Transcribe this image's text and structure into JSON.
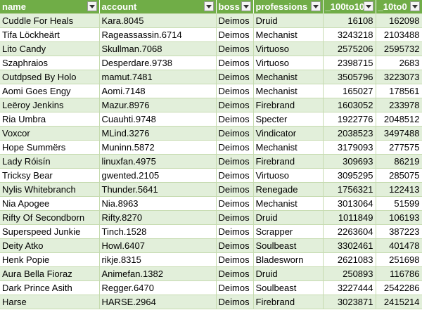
{
  "columns": [
    "name",
    "account",
    "boss",
    "professions",
    "_100to10",
    "_10to0"
  ],
  "rows": [
    [
      "Cuddle For Heals",
      "Kara.8045",
      "Deimos",
      "Druid",
      "16108",
      "162098"
    ],
    [
      "Tifa Löckheärt",
      "Rageassassin.6714",
      "Deimos",
      "Mechanist",
      "3243218",
      "2103488"
    ],
    [
      "Lito Candy",
      "Skullman.7068",
      "Deimos",
      "Virtuoso",
      "2575206",
      "2595732"
    ],
    [
      "Szaphraios",
      "Desperdare.9738",
      "Deimos",
      "Virtuoso",
      "2398715",
      "2683"
    ],
    [
      "Outdpsed By Holo",
      "mamut.7481",
      "Deimos",
      "Mechanist",
      "3505796",
      "3223073"
    ],
    [
      "Aomi Goes Engy",
      "Aomi.7148",
      "Deimos",
      "Mechanist",
      "165027",
      "178561"
    ],
    [
      "Leëroy Jenkins",
      "Mazur.8976",
      "Deimos",
      "Firebrand",
      "1603052",
      "233978"
    ],
    [
      "Ria Umbra",
      "Cuauhti.9748",
      "Deimos",
      "Specter",
      "1922776",
      "2048512"
    ],
    [
      "Voxcor",
      "MLind.3276",
      "Deimos",
      "Vindicator",
      "2038523",
      "3497488"
    ],
    [
      "Hope Summërs",
      "Muninn.5872",
      "Deimos",
      "Mechanist",
      "3179093",
      "277575"
    ],
    [
      "Lady Róisín",
      "linuxfan.4975",
      "Deimos",
      "Firebrand",
      "309693",
      "86219"
    ],
    [
      "Tricksy Bear",
      "gwented.2105",
      "Deimos",
      "Virtuoso",
      "3095295",
      "285075"
    ],
    [
      "Nylis Whitebranch",
      "Thunder.5641",
      "Deimos",
      "Renegade",
      "1756321",
      "122413"
    ],
    [
      "Nia Apogee",
      "Nia.8963",
      "Deimos",
      "Mechanist",
      "3013064",
      "51599"
    ],
    [
      "Rifty Of Secondborn",
      "Rifty.8270",
      "Deimos",
      "Druid",
      "1011849",
      "106193"
    ],
    [
      "Superspeed Junkie",
      "Tinch.1528",
      "Deimos",
      "Scrapper",
      "2263604",
      "387223"
    ],
    [
      "Deity Atko",
      "Howl.6407",
      "Deimos",
      "Soulbeast",
      "3302461",
      "401478"
    ],
    [
      "Henk Popie",
      "rikje.8315",
      "Deimos",
      "Bladesworn",
      "2621083",
      "251698"
    ],
    [
      "Aura Bella Fioraz",
      "Animefan.1382",
      "Deimos",
      "Druid",
      "250893",
      "116786"
    ],
    [
      "Dark Prince Asith",
      "Regger.6470",
      "Deimos",
      "Soulbeast",
      "3227444",
      "2542286"
    ],
    [
      "Harse",
      "HARSE.2964",
      "Deimos",
      "Firebrand",
      "3023871",
      "2415214"
    ]
  ]
}
